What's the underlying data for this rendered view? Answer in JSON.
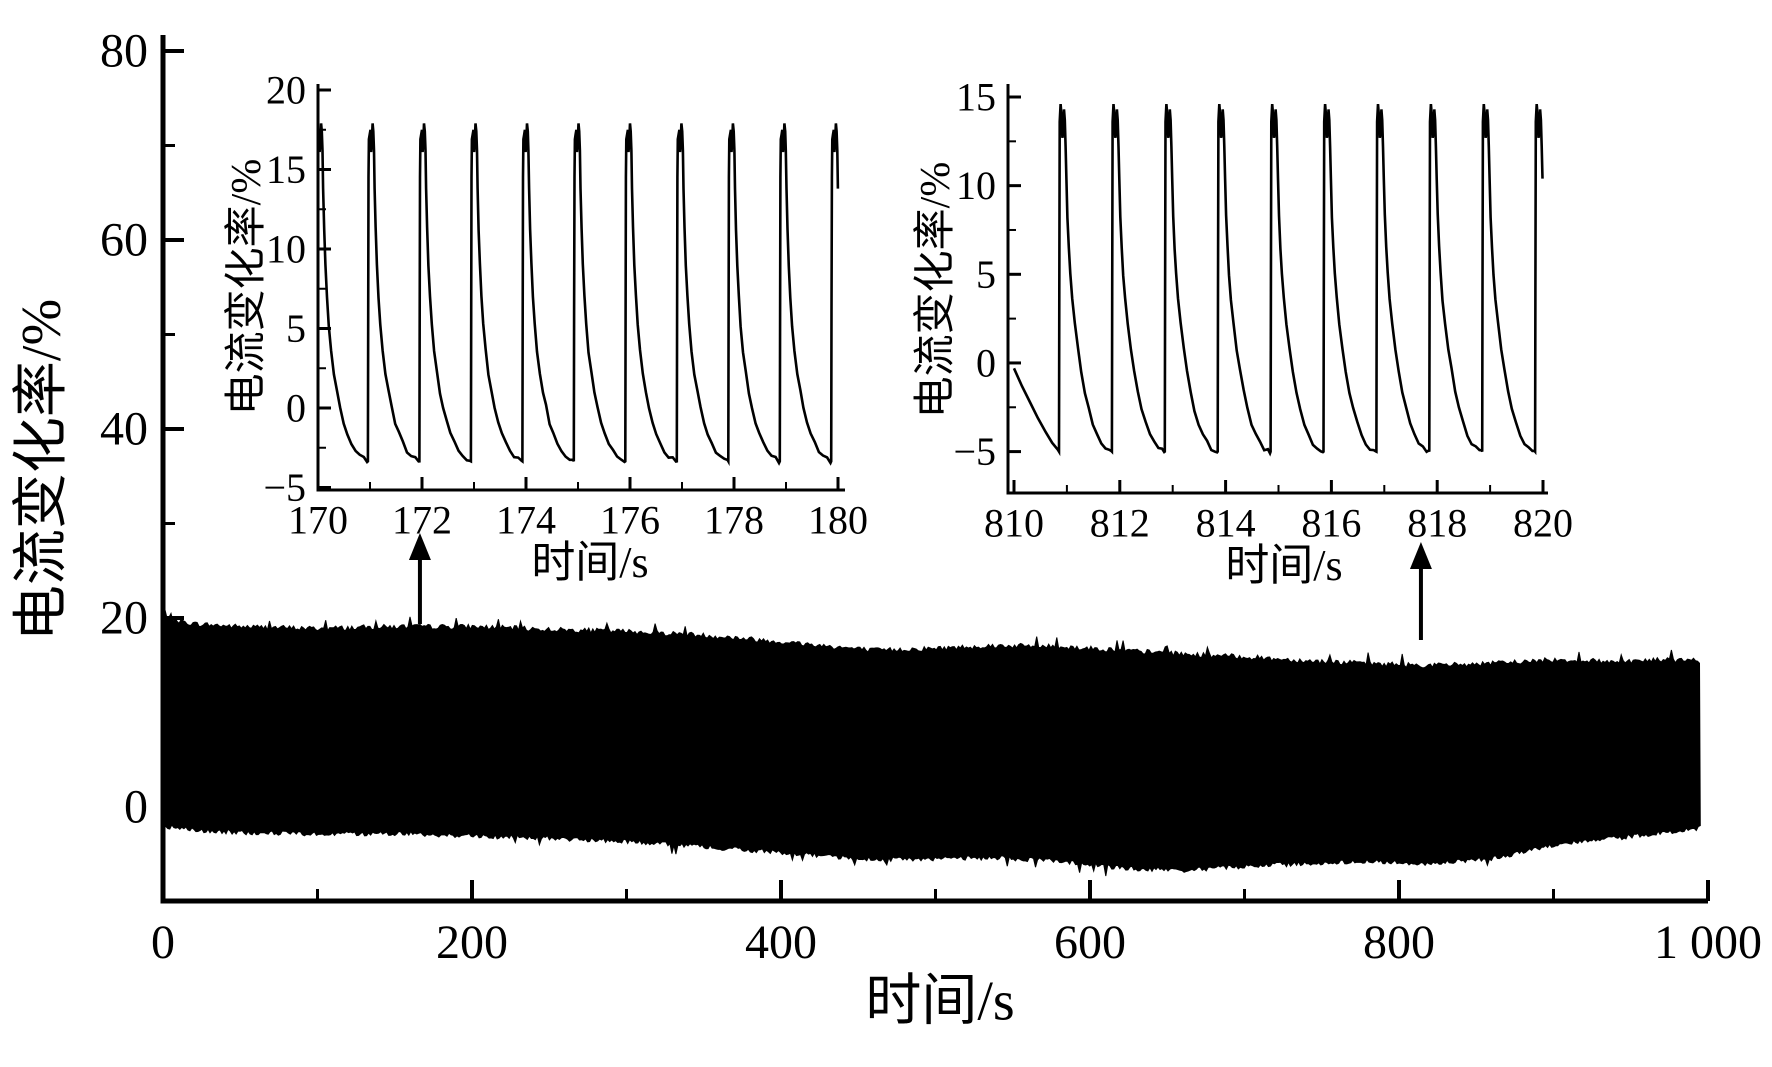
{
  "figure": {
    "background": "#ffffff",
    "foreground": "#000000",
    "description": "Current change rate vs time with two zoom insets"
  },
  "chart_data": [
    {
      "id": "main",
      "type": "area",
      "title": "",
      "xlabel": "时间/s",
      "ylabel": "电流变化率/%",
      "xlim": [
        0,
        1000
      ],
      "ylim": [
        -11,
        80
      ],
      "grid": false,
      "xticks": [
        0,
        200,
        400,
        600,
        800,
        1000
      ],
      "xticklabels": [
        "0",
        "200",
        "400",
        "600",
        "800",
        "1 000"
      ],
      "xminorticks": [
        100,
        300,
        500,
        700,
        900
      ],
      "yticks": [
        80,
        60,
        40,
        20,
        0
      ],
      "yticklabels": [
        "80",
        "60",
        "40",
        "20",
        "0"
      ],
      "yminorticks": [
        70,
        50,
        30,
        10
      ],
      "envelope": {
        "t": [
          0,
          20,
          50,
          100,
          150,
          200,
          250,
          300,
          340,
          380,
          420,
          460,
          500,
          540,
          580,
          620,
          660,
          700,
          740,
          780,
          820,
          860,
          900,
          940,
          970,
          995
        ],
        "top": [
          19.8,
          19.2,
          18.9,
          18.7,
          18.9,
          18.9,
          18.6,
          18.4,
          18.1,
          17.6,
          17.0,
          16.4,
          16.6,
          16.9,
          16.8,
          16.4,
          16.0,
          15.7,
          15.3,
          15.0,
          14.8,
          15.0,
          15.4,
          15.2,
          15.4,
          15.3
        ],
        "bottom": [
          -1.8,
          -2.3,
          -2.5,
          -2.7,
          -2.6,
          -2.9,
          -3.1,
          -3.5,
          -3.9,
          -4.4,
          -4.9,
          -5.4,
          -5.3,
          -5.2,
          -5.5,
          -6.3,
          -6.5,
          -6.1,
          -5.8,
          -5.6,
          -5.8,
          -5.3,
          -3.8,
          -3.1,
          -2.6,
          -2.0
        ],
        "t_end": 995
      },
      "annotations": [
        {
          "type": "arrow-up",
          "t": 166.3,
          "points_to": "inset-left"
        },
        {
          "type": "arrow-up",
          "t": 814.2,
          "points_to": "inset-right"
        }
      ]
    },
    {
      "id": "inset-left",
      "type": "line",
      "title": "",
      "xlabel": "时间/s",
      "ylabel": "电流变化率/%",
      "xlim": [
        170,
        180
      ],
      "ylim": [
        -5,
        20
      ],
      "grid": false,
      "xticks": [
        170,
        172,
        174,
        176,
        178,
        180
      ],
      "xticklabels": [
        "170",
        "172",
        "174",
        "176",
        "178",
        "180"
      ],
      "xminorticks": [
        171,
        173,
        175,
        177,
        179
      ],
      "yticks": [
        20,
        15,
        10,
        5,
        0,
        -5
      ],
      "yticklabels": [
        "20",
        "15",
        "10",
        "5",
        "0",
        "−5"
      ],
      "yminorticks": [
        17.5,
        12.5,
        7.5,
        2.5,
        -2.5
      ],
      "series": {
        "period": 0.99,
        "first_rise": 169.97,
        "n_cycles": 11,
        "lead_in": [],
        "cycle": [
          [
            0,
            -3.35
          ],
          [
            0.006,
            6.0
          ],
          [
            0.012,
            14.5
          ],
          [
            0.02,
            16.9
          ],
          [
            0.035,
            17.2
          ],
          [
            0.05,
            17.5
          ],
          [
            0.062,
            16.1
          ],
          [
            0.072,
            16.5
          ],
          [
            0.09,
            17.9
          ],
          [
            0.105,
            17.4
          ],
          [
            0.118,
            16.2
          ],
          [
            0.13,
            13.8
          ],
          [
            0.15,
            11.3
          ],
          [
            0.175,
            9.0
          ],
          [
            0.205,
            7.0
          ],
          [
            0.24,
            5.2
          ],
          [
            0.285,
            3.6
          ],
          [
            0.34,
            2.2
          ],
          [
            0.4,
            1.0
          ],
          [
            0.46,
            0.1
          ],
          [
            0.53,
            -0.9
          ],
          [
            0.6,
            -1.6
          ],
          [
            0.68,
            -2.2
          ],
          [
            0.76,
            -2.7
          ],
          [
            0.84,
            -3.0
          ],
          [
            0.92,
            -3.2
          ],
          [
            0.985,
            -3.35
          ]
        ]
      }
    },
    {
      "id": "inset-right",
      "type": "line",
      "title": "",
      "xlabel": "时间/s",
      "ylabel": "电流变化率/%",
      "xlim": [
        810,
        820
      ],
      "ylim": [
        -5,
        15
      ],
      "grid": false,
      "xticks": [
        810,
        812,
        814,
        816,
        818,
        820
      ],
      "xticklabels": [
        "810",
        "812",
        "814",
        "816",
        "818",
        "820"
      ],
      "xminorticks": [
        811,
        813,
        815,
        817,
        819
      ],
      "yticks": [
        15,
        10,
        5,
        0,
        -5
      ],
      "yticklabels": [
        "15",
        "10",
        "5",
        "0",
        "−5"
      ],
      "yminorticks": [
        12.5,
        7.5,
        2.5,
        -2.5
      ],
      "series": {
        "period": 1.0,
        "first_rise": 810.85,
        "n_cycles": 10,
        "lead_in": [
          [
            810.0,
            -0.3
          ],
          [
            810.15,
            -1.3
          ],
          [
            810.3,
            -2.2
          ],
          [
            810.45,
            -3.1
          ],
          [
            810.6,
            -3.9
          ],
          [
            810.72,
            -4.5
          ],
          [
            810.83,
            -4.9
          ]
        ],
        "cycle": [
          [
            0,
            -5.0
          ],
          [
            0.006,
            4.0
          ],
          [
            0.014,
            13.6
          ],
          [
            0.03,
            14.6
          ],
          [
            0.05,
            13.9
          ],
          [
            0.065,
            12.7
          ],
          [
            0.08,
            13.0
          ],
          [
            0.095,
            14.3
          ],
          [
            0.11,
            13.7
          ],
          [
            0.125,
            12.2
          ],
          [
            0.14,
            10.4
          ],
          [
            0.16,
            8.3
          ],
          [
            0.185,
            6.5
          ],
          [
            0.215,
            5.0
          ],
          [
            0.25,
            3.6
          ],
          [
            0.3,
            2.2
          ],
          [
            0.36,
            0.8
          ],
          [
            0.42,
            -0.4
          ],
          [
            0.49,
            -1.6
          ],
          [
            0.56,
            -2.6
          ],
          [
            0.64,
            -3.4
          ],
          [
            0.72,
            -4.0
          ],
          [
            0.8,
            -4.5
          ],
          [
            0.88,
            -4.8
          ],
          [
            0.95,
            -4.95
          ],
          [
            0.99,
            -5.0
          ]
        ]
      }
    }
  ]
}
